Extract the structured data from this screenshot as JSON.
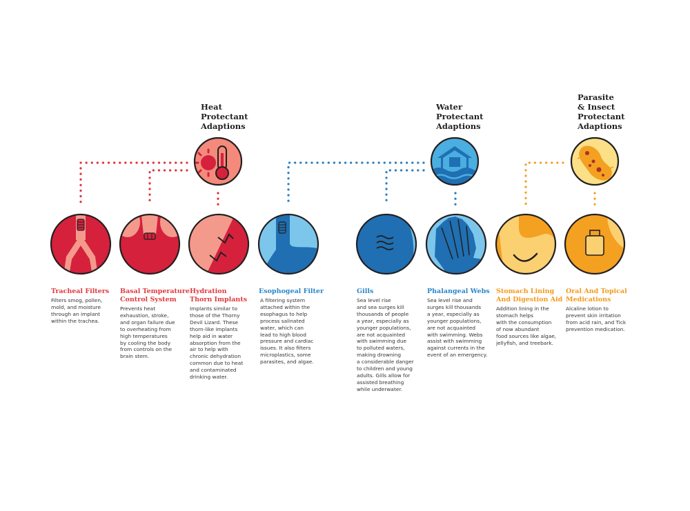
{
  "colors": {
    "heat_line": "#e0343b",
    "water_line": "#2a7ec0",
    "parasite_line": "#f4a024",
    "heat_circle": "#f48a7c",
    "water_circle": "#4aaee0",
    "parasite_circle": "#fbe088",
    "red_dark": "#d5213c",
    "red_light": "#f49a8c",
    "blue_dark": "#1f6fb2",
    "blue_light": "#7cc6ec",
    "orange_dark": "#f4a021",
    "orange_light": "#fbd071",
    "outline": "#231f20",
    "heat_title": "#e03a3e",
    "water_title": "#2a87c8",
    "parasite_title": "#f39a1f"
  },
  "categories": [
    {
      "id": "heat",
      "title_lines": [
        "Heat",
        "Protectant",
        "Adaptions"
      ],
      "icon": "sun-thermometer-icon"
    },
    {
      "id": "water",
      "title_lines": [
        "Water",
        "Protectant",
        "Adaptions"
      ],
      "icon": "flooded-house-icon"
    },
    {
      "id": "parasite",
      "title_lines": [
        "Parasite",
        "& Insect",
        "Protectant",
        "Adaptions"
      ],
      "icon": "bacteria-icon"
    }
  ],
  "items": [
    {
      "title_lines": [
        "Tracheal Filters"
      ],
      "desc_lines": [
        "Filters smog, pollen,",
        "mold, and moisture",
        "through an implant",
        "within the trachea."
      ],
      "icon": "lungs-filter-icon"
    },
    {
      "title_lines": [
        "Basal Temperature",
        "Control System"
      ],
      "desc_lines": [
        "Prevents heat",
        "exhaustion, stroke,",
        "and organ failure due",
        "to overheating from",
        "high temperatures",
        "by cooling the body",
        "from controls on the",
        "brain stem."
      ],
      "icon": "temperature-implant-icon"
    },
    {
      "title_lines": [
        "Hydration",
        "Thorn Implants"
      ],
      "desc_lines": [
        "Implants similar to",
        "those of the Thorny",
        "Devil Lizard. These",
        "thorn-like implants",
        "help aid in water",
        "absorption from the",
        "air to help with",
        "chronic dehydration",
        "common due to heat",
        "and contaminated",
        "drinking water."
      ],
      "icon": "thorn-skin-icon"
    },
    {
      "title_lines": [
        "Esophogeal Filter"
      ],
      "desc_lines": [
        "A filtering system",
        "attached within the",
        "esophagus to help",
        "process salinated",
        "water, which can",
        "lead to high blood",
        "pressure and cardiac",
        "issues. It also filters",
        "microplastics, some",
        "parasites, and algae."
      ],
      "icon": "esophagus-filter-icon"
    },
    {
      "title_lines": [
        "Gills"
      ],
      "desc_lines": [
        "Sea level rise",
        "and sea surges kill",
        "thousands of people",
        "a year, especially as",
        "younger populations,",
        "are not acquainted",
        "with swimming due",
        "to polluted waters,",
        "making drowning",
        "a considerable danger",
        "to children and young",
        "adults. Gills allow for",
        "assisted breathing",
        "while underwater."
      ],
      "icon": "gills-icon"
    },
    {
      "title_lines": [
        "Phalangeal Webs"
      ],
      "desc_lines": [
        "Sea level rise and",
        "surges kill thousands",
        "a year, especially as",
        "younger populations,",
        "are not acquainted",
        "with swimming. Webs",
        "assist with swimming",
        "against currents in the",
        "event of an emergency."
      ],
      "icon": "webbed-hand-icon"
    },
    {
      "title_lines": [
        "Stomach Lining",
        "And Digestion Aid"
      ],
      "desc_lines": [
        "Addition lining in the",
        "stomach helps",
        "with the consumption",
        "of now abundant",
        "food sources like algae,",
        "jellyfish, and treebark."
      ],
      "icon": "stomach-icon"
    },
    {
      "title_lines": [
        "Oral And Topical",
        "Medications"
      ],
      "desc_lines": [
        "Alcaline lotion to",
        "prevent skin irritation",
        "from acid rain, and Tick",
        "prevention medication."
      ],
      "icon": "medicine-bottle-icon"
    }
  ]
}
